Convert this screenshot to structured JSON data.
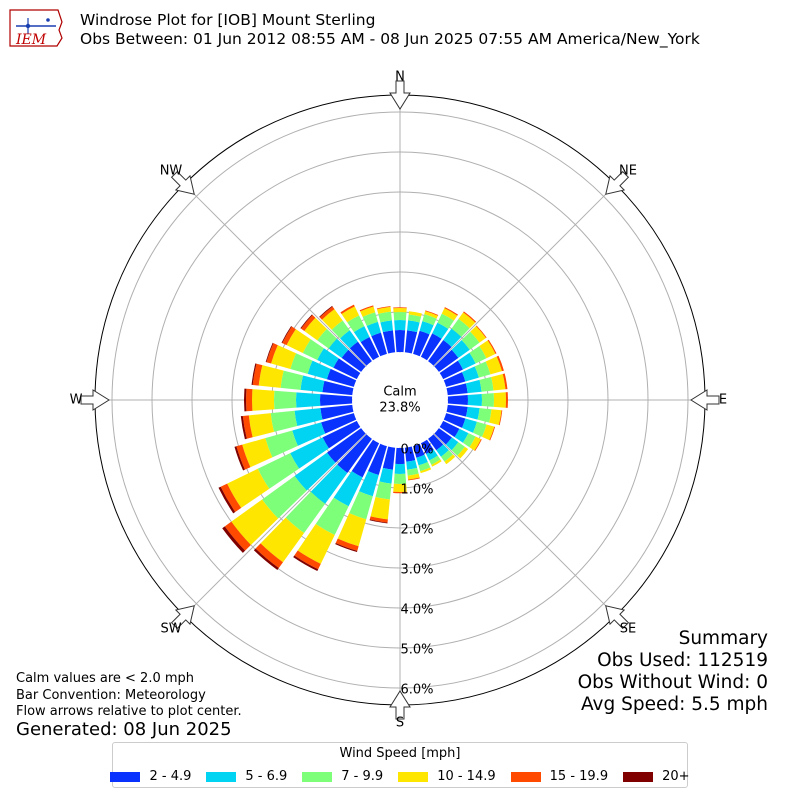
{
  "header": {
    "logo_text": "IEM",
    "title_line1": "Windrose Plot for [IOB] Mount Sterling",
    "title_line2": "Obs Between: 01 Jun 2012 08:55 AM - 08 Jun 2025 07:55 AM America/New_York"
  },
  "footnotes": {
    "calm_note": "Calm values are < 2.0 mph",
    "bar_convention": "Bar Convention: Meteorology",
    "flow_note": "Flow arrows relative to plot center.",
    "generated": "Generated: 08 Jun 2025"
  },
  "summary": {
    "title": "Summary",
    "obs_used": "Obs Used: 112519",
    "obs_without_wind": "Obs Without Wind: 0",
    "avg_speed": "Avg Speed: 5.5 mph"
  },
  "chart_data": {
    "type": "windrose",
    "calm_label": "Calm",
    "calm_value_label": "23.8%",
    "calm_percent": 23.8,
    "directions": [
      "N",
      "NE",
      "E",
      "SE",
      "S",
      "SW",
      "W",
      "NW"
    ],
    "radial_ticks": [
      "0.0%",
      "1.0%",
      "2.0%",
      "3.0%",
      "4.0%",
      "5.0%",
      "6.0%"
    ],
    "radial_range": [
      0,
      6.5
    ],
    "grid": true,
    "legend_title": "Wind Speed [mph]",
    "legend_position": "bottom",
    "bins": [
      {
        "label": "2 - 4.9",
        "color": "#0a32ff"
      },
      {
        "label": "5 - 6.9",
        "color": "#00d4f2"
      },
      {
        "label": "7 - 9.9",
        "color": "#7dff7a"
      },
      {
        "label": "10 - 14.9",
        "color": "#ffe600"
      },
      {
        "label": "15 - 19.9",
        "color": "#ff4a00"
      },
      {
        "label": "20+",
        "color": "#800000"
      }
    ],
    "sectors": [
      {
        "dir": 0,
        "values": [
          0.55,
          0.25,
          0.2,
          0.1,
          0.02,
          0.0
        ]
      },
      {
        "dir": 10,
        "values": [
          0.55,
          0.25,
          0.15,
          0.08,
          0.0,
          0.0
        ]
      },
      {
        "dir": 20,
        "values": [
          0.6,
          0.25,
          0.18,
          0.08,
          0.02,
          0.0
        ]
      },
      {
        "dir": 30,
        "values": [
          0.65,
          0.3,
          0.25,
          0.15,
          0.03,
          0.0
        ]
      },
      {
        "dir": 40,
        "values": [
          0.65,
          0.35,
          0.3,
          0.2,
          0.03,
          0.0
        ]
      },
      {
        "dir": 50,
        "values": [
          0.6,
          0.35,
          0.3,
          0.2,
          0.02,
          0.0
        ]
      },
      {
        "dir": 60,
        "values": [
          0.55,
          0.35,
          0.3,
          0.25,
          0.03,
          0.0
        ]
      },
      {
        "dir": 70,
        "values": [
          0.5,
          0.35,
          0.3,
          0.3,
          0.05,
          0.0
        ]
      },
      {
        "dir": 80,
        "values": [
          0.5,
          0.35,
          0.3,
          0.3,
          0.05,
          0.0
        ]
      },
      {
        "dir": 90,
        "values": [
          0.5,
          0.35,
          0.3,
          0.3,
          0.05,
          0.0
        ]
      },
      {
        "dir": 100,
        "values": [
          0.5,
          0.3,
          0.3,
          0.25,
          0.02,
          0.0
        ]
      },
      {
        "dir": 110,
        "values": [
          0.5,
          0.3,
          0.25,
          0.2,
          0.02,
          0.0
        ]
      },
      {
        "dir": 120,
        "values": [
          0.45,
          0.25,
          0.2,
          0.15,
          0.02,
          0.0
        ]
      },
      {
        "dir": 130,
        "values": [
          0.4,
          0.2,
          0.2,
          0.1,
          0.0,
          0.0
        ]
      },
      {
        "dir": 140,
        "values": [
          0.35,
          0.2,
          0.15,
          0.08,
          0.0,
          0.0
        ]
      },
      {
        "dir": 150,
        "values": [
          0.3,
          0.18,
          0.12,
          0.05,
          0.0,
          0.0
        ]
      },
      {
        "dir": 160,
        "values": [
          0.3,
          0.2,
          0.15,
          0.05,
          0.0,
          0.0
        ]
      },
      {
        "dir": 170,
        "values": [
          0.35,
          0.2,
          0.15,
          0.1,
          0.02,
          0.0
        ]
      },
      {
        "dir": 180,
        "values": [
          0.4,
          0.25,
          0.25,
          0.2,
          0.03,
          0.0
        ]
      },
      {
        "dir": 190,
        "values": [
          0.55,
          0.35,
          0.4,
          0.5,
          0.08,
          0.02
        ]
      },
      {
        "dir": 200,
        "values": [
          0.75,
          0.55,
          0.6,
          0.7,
          0.12,
          0.03
        ]
      },
      {
        "dir": 210,
        "values": [
          0.95,
          0.8,
          0.8,
          0.8,
          0.15,
          0.05
        ]
      },
      {
        "dir": 220,
        "values": [
          1.05,
          0.95,
          0.9,
          0.9,
          0.18,
          0.06
        ]
      },
      {
        "dir": 230,
        "values": [
          1.05,
          1.0,
          1.0,
          0.95,
          0.2,
          0.08
        ]
      },
      {
        "dir": 240,
        "values": [
          0.95,
          0.9,
          0.9,
          0.85,
          0.18,
          0.06
        ]
      },
      {
        "dir": 250,
        "values": [
          0.85,
          0.75,
          0.7,
          0.6,
          0.15,
          0.05
        ]
      },
      {
        "dir": 260,
        "values": [
          0.8,
          0.65,
          0.6,
          0.55,
          0.15,
          0.05
        ]
      },
      {
        "dir": 270,
        "values": [
          0.8,
          0.6,
          0.55,
          0.55,
          0.15,
          0.05
        ]
      },
      {
        "dir": 280,
        "values": [
          0.75,
          0.55,
          0.5,
          0.55,
          0.15,
          0.03
        ]
      },
      {
        "dir": 290,
        "values": [
          0.7,
          0.5,
          0.45,
          0.5,
          0.12,
          0.02
        ]
      },
      {
        "dir": 300,
        "values": [
          0.65,
          0.45,
          0.4,
          0.45,
          0.12,
          0.02
        ]
      },
      {
        "dir": 310,
        "values": [
          0.6,
          0.4,
          0.35,
          0.4,
          0.1,
          0.02
        ]
      },
      {
        "dir": 320,
        "values": [
          0.6,
          0.35,
          0.3,
          0.35,
          0.08,
          0.02
        ]
      },
      {
        "dir": 330,
        "values": [
          0.55,
          0.3,
          0.3,
          0.25,
          0.05,
          0.0
        ]
      },
      {
        "dir": 340,
        "values": [
          0.55,
          0.28,
          0.25,
          0.15,
          0.03,
          0.0
        ]
      },
      {
        "dir": 350,
        "values": [
          0.55,
          0.25,
          0.22,
          0.12,
          0.02,
          0.0
        ]
      }
    ]
  }
}
